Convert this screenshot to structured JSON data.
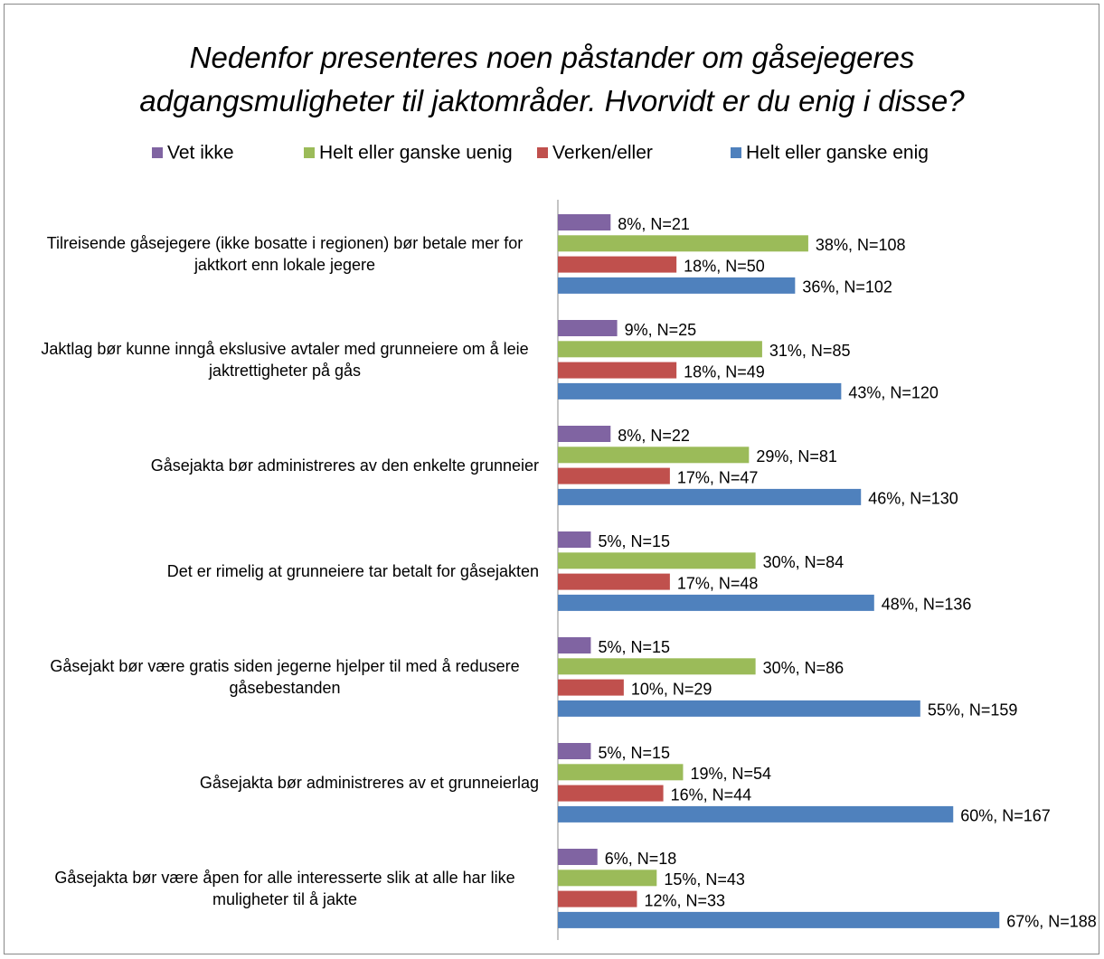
{
  "chart_data": {
    "type": "bar",
    "orientation": "horizontal",
    "title": "Nedenfor presenteres noen påstander om gåsejegeres adgangsmuligheter til jaktområder. Hvorvidt er du enig i disse?",
    "categories": [
      "Tilreisende gåsejegere (ikke bosatte i regionen) bør betale mer for jaktkort enn lokale jegere",
      "Jaktlag bør kunne inngå ekslusive avtaler med grunneiere om å leie jaktrettigheter på gås",
      "Gåsejakta bør administreres av den enkelte grunneier",
      "Det er rimelig at grunneiere tar betalt for gåsejakten",
      "Gåsejakt bør være gratis siden jegerne hjelper til med å redusere gåsebestanden",
      "Gåsejakta bør administreres av et grunneierlag",
      "Gåsejakta bør være åpen for alle interesserte slik at alle har like muligheter til å jakte"
    ],
    "series": [
      {
        "name": "Vet ikke",
        "color": "#8064a2",
        "values": [
          8,
          9,
          8,
          5,
          5,
          5,
          6
        ],
        "value_labels": [
          "8%, N=21",
          "9%, N=25",
          "8%, N=22",
          "5%, N=15",
          "5%, N=15",
          "5%, N=15",
          "6%, N=18"
        ]
      },
      {
        "name": "Helt eller ganske uenig",
        "color": "#9bbb59",
        "values": [
          38,
          31,
          29,
          30,
          30,
          19,
          15
        ],
        "value_labels": [
          "38%, N=108",
          "31%, N=85",
          "29%, N=81",
          "30%, N=84",
          "30%, N=86",
          "19%, N=54",
          "15%, N=43"
        ]
      },
      {
        "name": "Verken/eller",
        "color": "#c0504d",
        "values": [
          18,
          18,
          17,
          17,
          10,
          16,
          12
        ],
        "value_labels": [
          "18%, N=50",
          "18%, N=49",
          "17%, N=47",
          "17%, N=48",
          "10%, N=29",
          "16%, N=44",
          "12%, N=33"
        ]
      },
      {
        "name": "Helt eller ganske enig",
        "color": "#4f81bd",
        "values": [
          36,
          43,
          46,
          48,
          55,
          60,
          67
        ],
        "value_labels": [
          "36%, N=102",
          "43%, N=120",
          "46%, N=130",
          "48%, N=136",
          "55%, N=159",
          "60%, N=167",
          "67%, N=188"
        ]
      }
    ],
    "xlim": [
      0,
      80
    ],
    "legend": "top"
  }
}
